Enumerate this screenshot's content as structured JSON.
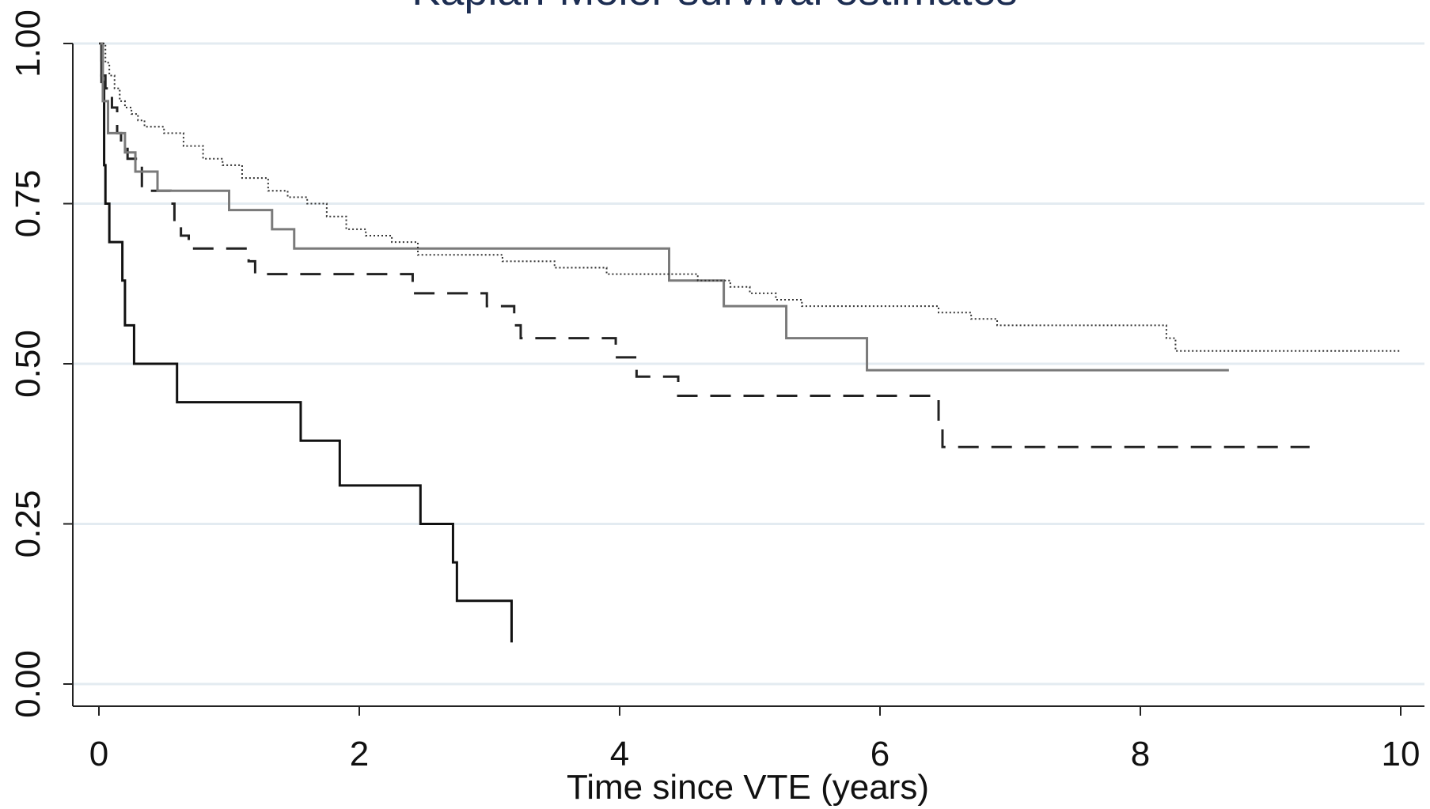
{
  "chart_data": {
    "type": "line",
    "title": "Kaplan-Meier survival estimates",
    "xlabel": "Time since VTE (years)",
    "ylabel": "",
    "xlim": [
      0,
      10
    ],
    "ylim": [
      0,
      1
    ],
    "x_ticks": [
      0,
      2,
      4,
      6,
      8,
      10
    ],
    "x_tick_labels": [
      "0",
      "2",
      "4",
      "6",
      "8",
      "10"
    ],
    "y_ticks": [
      0,
      0.25,
      0.5,
      0.75,
      1
    ],
    "y_tick_labels": [
      "0.00",
      "0.25",
      "0.50",
      "0.75",
      "1.00"
    ],
    "grid": "horizontal",
    "legend": "none",
    "step": true,
    "series": [
      {
        "color": "#111111",
        "dash": "solid",
        "x": [
          0,
          0.02,
          0.04,
          0.05,
          0.08,
          0.18,
          0.2,
          0.27,
          0.6,
          1.55,
          1.85,
          2.47,
          2.72,
          2.75,
          3.17
        ],
        "y": [
          1.0,
          0.94,
          0.81,
          0.75,
          0.69,
          0.63,
          0.56,
          0.5,
          0.44,
          0.38,
          0.31,
          0.25,
          0.19,
          0.13,
          0.065
        ]
      },
      {
        "color": "#222222",
        "dash": "dashed",
        "x": [
          0,
          0.02,
          0.05,
          0.1,
          0.14,
          0.17,
          0.22,
          0.33,
          0.55,
          0.58,
          0.63,
          0.69,
          1.15,
          1.2,
          2.41,
          2.98,
          3.19,
          3.24,
          3.97,
          4.13,
          4.45,
          4.58,
          6.45,
          6.48,
          9.3
        ],
        "y": [
          1.0,
          0.95,
          0.93,
          0.9,
          0.86,
          0.84,
          0.82,
          0.77,
          0.75,
          0.72,
          0.7,
          0.68,
          0.66,
          0.64,
          0.61,
          0.59,
          0.56,
          0.54,
          0.51,
          0.48,
          0.45,
          0.45,
          0.4,
          0.37,
          0.37
        ]
      },
      {
        "color": "#7a7a7a",
        "dash": "solid",
        "x": [
          0,
          0.03,
          0.07,
          0.2,
          0.28,
          0.45,
          0.48,
          1.0,
          1.33,
          1.5,
          4.38,
          4.8,
          5.28,
          5.9,
          8.68
        ],
        "y": [
          1.0,
          0.91,
          0.86,
          0.83,
          0.8,
          0.77,
          0.77,
          0.74,
          0.71,
          0.68,
          0.63,
          0.59,
          0.54,
          0.49,
          0.49
        ]
      },
      {
        "color": "#333333",
        "dash": "dotted",
        "x": [
          0,
          0.05,
          0.08,
          0.12,
          0.16,
          0.2,
          0.25,
          0.3,
          0.35,
          0.5,
          0.65,
          0.8,
          0.95,
          1.1,
          1.3,
          1.45,
          1.6,
          1.75,
          1.9,
          2.05,
          2.25,
          2.45,
          2.8,
          3.1,
          3.5,
          3.9,
          4.3,
          4.6,
          4.85,
          5.0,
          5.2,
          5.4,
          6.1,
          6.45,
          6.7,
          6.9,
          7.5,
          8.2,
          8.27,
          10.0
        ],
        "y": [
          1.0,
          0.97,
          0.95,
          0.93,
          0.91,
          0.9,
          0.89,
          0.88,
          0.87,
          0.86,
          0.84,
          0.82,
          0.81,
          0.79,
          0.77,
          0.76,
          0.75,
          0.73,
          0.71,
          0.7,
          0.69,
          0.67,
          0.67,
          0.66,
          0.65,
          0.64,
          0.64,
          0.63,
          0.62,
          0.61,
          0.6,
          0.59,
          0.59,
          0.58,
          0.57,
          0.56,
          0.56,
          0.54,
          0.52,
          0.52
        ]
      }
    ]
  }
}
